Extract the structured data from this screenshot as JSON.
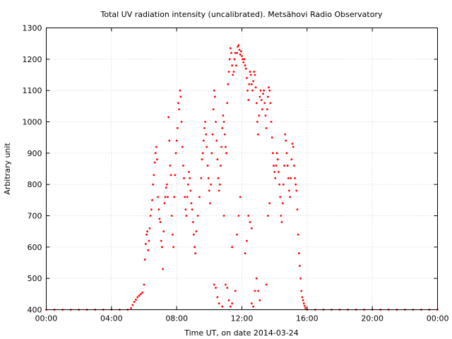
{
  "chart_data": {
    "type": "scatter",
    "title": "Total UV radiation intensity (uncalibrated). Metsähovi Radio Observatory",
    "xlabel": "Time UT, on date 2014-03-24",
    "ylabel": "Arbitrary unit",
    "xlim": [
      0,
      24
    ],
    "ylim": [
      400,
      1300
    ],
    "x_ticks": [
      {
        "value": 0,
        "label": "00:00"
      },
      {
        "value": 4,
        "label": "04:00"
      },
      {
        "value": 8,
        "label": "08:00"
      },
      {
        "value": 12,
        "label": "12:00"
      },
      {
        "value": 16,
        "label": "16:00"
      },
      {
        "value": 20,
        "label": "20:00"
      },
      {
        "value": 24,
        "label": "00:00"
      }
    ],
    "y_ticks": [
      400,
      500,
      600,
      700,
      800,
      900,
      1000,
      1100,
      1200,
      1300
    ],
    "grid": true,
    "marker_color": "#ff0000",
    "series": [
      {
        "points": [
          [
            0.0,
            400
          ],
          [
            0.5,
            400
          ],
          [
            1.0,
            400
          ],
          [
            1.5,
            400
          ],
          [
            2.0,
            400
          ],
          [
            2.5,
            400
          ],
          [
            3.0,
            400
          ],
          [
            3.5,
            400
          ],
          [
            4.0,
            400
          ],
          [
            4.5,
            400
          ],
          [
            5.0,
            400
          ],
          [
            5.2,
            405
          ],
          [
            5.3,
            415
          ],
          [
            5.4,
            425
          ],
          [
            5.5,
            432
          ],
          [
            5.6,
            440
          ],
          [
            5.7,
            445
          ],
          [
            5.8,
            450
          ],
          [
            5.9,
            455
          ],
          [
            6.0,
            480
          ],
          [
            6.05,
            560
          ],
          [
            6.1,
            610
          ],
          [
            6.15,
            640
          ],
          [
            6.2,
            650
          ],
          [
            6.25,
            590
          ],
          [
            6.3,
            620
          ],
          [
            6.35,
            660
          ],
          [
            6.4,
            700
          ],
          [
            6.45,
            720
          ],
          [
            6.5,
            750
          ],
          [
            6.55,
            800
          ],
          [
            6.6,
            830
          ],
          [
            6.65,
            870
          ],
          [
            6.7,
            900
          ],
          [
            6.75,
            920
          ],
          [
            6.8,
            880
          ],
          [
            6.85,
            760
          ],
          [
            6.9,
            720
          ],
          [
            6.95,
            690
          ],
          [
            7.0,
            680
          ],
          [
            7.05,
            620
          ],
          [
            7.1,
            600
          ],
          [
            7.15,
            530
          ],
          [
            7.2,
            650
          ],
          [
            7.25,
            740
          ],
          [
            7.3,
            760
          ],
          [
            7.35,
            790
          ],
          [
            7.4,
            800
          ],
          [
            7.45,
            760
          ],
          [
            7.5,
            1015
          ],
          [
            7.55,
            940
          ],
          [
            7.6,
            860
          ],
          [
            7.65,
            830
          ],
          [
            7.7,
            700
          ],
          [
            7.75,
            640
          ],
          [
            7.8,
            600
          ],
          [
            7.85,
            760
          ],
          [
            7.9,
            830
          ],
          [
            7.95,
            900
          ],
          [
            8.0,
            940
          ],
          [
            8.05,
            980
          ],
          [
            8.1,
            1060
          ],
          [
            8.15,
            1040
          ],
          [
            8.2,
            1100
          ],
          [
            8.25,
            1080
          ],
          [
            8.3,
            1000
          ],
          [
            8.35,
            920
          ],
          [
            8.4,
            860
          ],
          [
            8.45,
            820
          ],
          [
            8.5,
            760
          ],
          [
            8.55,
            720
          ],
          [
            8.6,
            700
          ],
          [
            8.65,
            760
          ],
          [
            8.7,
            800
          ],
          [
            8.75,
            840
          ],
          [
            8.8,
            820
          ],
          [
            8.85,
            780
          ],
          [
            8.9,
            740
          ],
          [
            8.95,
            720
          ],
          [
            9.0,
            680
          ],
          [
            9.05,
            640
          ],
          [
            9.1,
            600
          ],
          [
            9.15,
            580
          ],
          [
            9.2,
            650
          ],
          [
            9.3,
            700
          ],
          [
            9.4,
            760
          ],
          [
            9.5,
            820
          ],
          [
            9.55,
            880
          ],
          [
            9.6,
            900
          ],
          [
            9.65,
            940
          ],
          [
            9.7,
            980
          ],
          [
            9.75,
            1000
          ],
          [
            9.8,
            960
          ],
          [
            9.85,
            920
          ],
          [
            9.9,
            860
          ],
          [
            9.95,
            820
          ],
          [
            10.0,
            780
          ],
          [
            10.05,
            740
          ],
          [
            10.1,
            800
          ],
          [
            10.15,
            900
          ],
          [
            10.2,
            960
          ],
          [
            10.25,
            1040
          ],
          [
            10.3,
            1100
          ],
          [
            10.35,
            1080
          ],
          [
            10.4,
            1000
          ],
          [
            10.45,
            940
          ],
          [
            10.5,
            880
          ],
          [
            10.55,
            820
          ],
          [
            10.6,
            780
          ],
          [
            10.65,
            800
          ],
          [
            10.7,
            860
          ],
          [
            10.75,
            920
          ],
          [
            10.8,
            980
          ],
          [
            10.85,
            1020
          ],
          [
            10.9,
            1000
          ],
          [
            10.95,
            960
          ],
          [
            11.0,
            920
          ],
          [
            11.05,
            900
          ],
          [
            11.1,
            1060
          ],
          [
            11.15,
            1120
          ],
          [
            11.2,
            1160
          ],
          [
            11.25,
            1200
          ],
          [
            11.3,
            1235
          ],
          [
            11.35,
            1220
          ],
          [
            11.4,
            1180
          ],
          [
            11.45,
            1150
          ],
          [
            11.5,
            1160
          ],
          [
            11.55,
            1200
          ],
          [
            11.6,
            1220
          ],
          [
            11.65,
            1180
          ],
          [
            11.7,
            1220
          ],
          [
            11.75,
            1240
          ],
          [
            11.8,
            1245
          ],
          [
            11.85,
            1230
          ],
          [
            11.9,
            1215
          ],
          [
            11.95,
            1225
          ],
          [
            12.0,
            1210
          ],
          [
            12.05,
            1200
          ],
          [
            12.1,
            1190
          ],
          [
            12.15,
            1200
          ],
          [
            12.2,
            1180
          ],
          [
            12.25,
            1170
          ],
          [
            12.3,
            1140
          ],
          [
            12.35,
            1100
          ],
          [
            12.4,
            1070
          ],
          [
            12.45,
            1120
          ],
          [
            12.5,
            1160
          ],
          [
            12.55,
            1150
          ],
          [
            12.6,
            1120
          ],
          [
            12.65,
            1100
          ],
          [
            12.7,
            1130
          ],
          [
            12.75,
            1160
          ],
          [
            12.8,
            1150
          ],
          [
            12.85,
            1110
          ],
          [
            12.9,
            1060
          ],
          [
            12.95,
            1000
          ],
          [
            13.0,
            960
          ],
          [
            13.05,
            1020
          ],
          [
            13.1,
            1080
          ],
          [
            13.15,
            1100
          ],
          [
            13.2,
            1070
          ],
          [
            13.25,
            1040
          ],
          [
            13.3,
            1090
          ],
          [
            13.35,
            1100
          ],
          [
            13.4,
            1060
          ],
          [
            13.45,
            1020
          ],
          [
            13.5,
            980
          ],
          [
            13.55,
            1040
          ],
          [
            13.6,
            1080
          ],
          [
            13.65,
            1110
          ],
          [
            13.7,
            1100
          ],
          [
            13.75,
            1060
          ],
          [
            13.8,
            1000
          ],
          [
            13.85,
            950
          ],
          [
            13.9,
            900
          ],
          [
            13.95,
            860
          ],
          [
            14.0,
            840
          ],
          [
            14.05,
            820
          ],
          [
            14.1,
            860
          ],
          [
            14.15,
            900
          ],
          [
            14.2,
            880
          ],
          [
            14.25,
            840
          ],
          [
            14.3,
            800
          ],
          [
            14.35,
            760
          ],
          [
            14.4,
            700
          ],
          [
            14.45,
            680
          ],
          [
            14.5,
            740
          ],
          [
            14.55,
            800
          ],
          [
            14.6,
            860
          ],
          [
            14.65,
            960
          ],
          [
            14.7,
            940
          ],
          [
            14.75,
            900
          ],
          [
            14.8,
            860
          ],
          [
            14.85,
            820
          ],
          [
            14.9,
            780
          ],
          [
            14.95,
            760
          ],
          [
            15.0,
            820
          ],
          [
            15.05,
            880
          ],
          [
            15.1,
            930
          ],
          [
            15.15,
            920
          ],
          [
            15.2,
            860
          ],
          [
            15.25,
            820
          ],
          [
            15.3,
            800
          ],
          [
            15.35,
            780
          ],
          [
            15.4,
            720
          ],
          [
            15.45,
            640
          ],
          [
            15.5,
            580
          ],
          [
            15.55,
            540
          ],
          [
            15.6,
            500
          ],
          [
            15.65,
            460
          ],
          [
            15.7,
            440
          ],
          [
            15.75,
            430
          ],
          [
            15.8,
            420
          ],
          [
            15.85,
            412
          ],
          [
            15.9,
            405
          ],
          [
            16.0,
            400
          ],
          [
            16.5,
            400
          ],
          [
            17.0,
            400
          ],
          [
            17.5,
            400
          ],
          [
            18.0,
            400
          ],
          [
            18.5,
            400
          ],
          [
            19.0,
            400
          ],
          [
            19.5,
            400
          ],
          [
            20.0,
            400
          ],
          [
            20.5,
            400
          ],
          [
            21.0,
            400
          ],
          [
            21.5,
            400
          ],
          [
            22.0,
            400
          ],
          [
            22.5,
            400
          ],
          [
            23.0,
            400
          ],
          [
            23.5,
            400
          ],
          [
            24.0,
            400
          ],
          [
            10.3,
            480
          ],
          [
            10.4,
            470
          ],
          [
            10.5,
            440
          ],
          [
            10.6,
            420
          ],
          [
            10.8,
            410
          ],
          [
            11.0,
            480
          ],
          [
            11.1,
            470
          ],
          [
            11.2,
            430
          ],
          [
            11.3,
            410
          ],
          [
            11.4,
            420
          ],
          [
            11.6,
            460
          ],
          [
            11.7,
            640
          ],
          [
            11.8,
            700
          ],
          [
            11.9,
            760
          ],
          [
            12.2,
            580
          ],
          [
            12.3,
            620
          ],
          [
            12.4,
            700
          ],
          [
            12.5,
            680
          ],
          [
            12.6,
            420
          ],
          [
            12.7,
            410
          ],
          [
            12.8,
            460
          ],
          [
            12.9,
            500
          ],
          [
            13.0,
            460
          ],
          [
            13.1,
            430
          ],
          [
            13.5,
            480
          ],
          [
            13.6,
            700
          ],
          [
            13.7,
            740
          ],
          [
            11.4,
            600
          ],
          [
            12.6,
            660
          ],
          [
            10.9,
            700
          ]
        ]
      }
    ]
  }
}
